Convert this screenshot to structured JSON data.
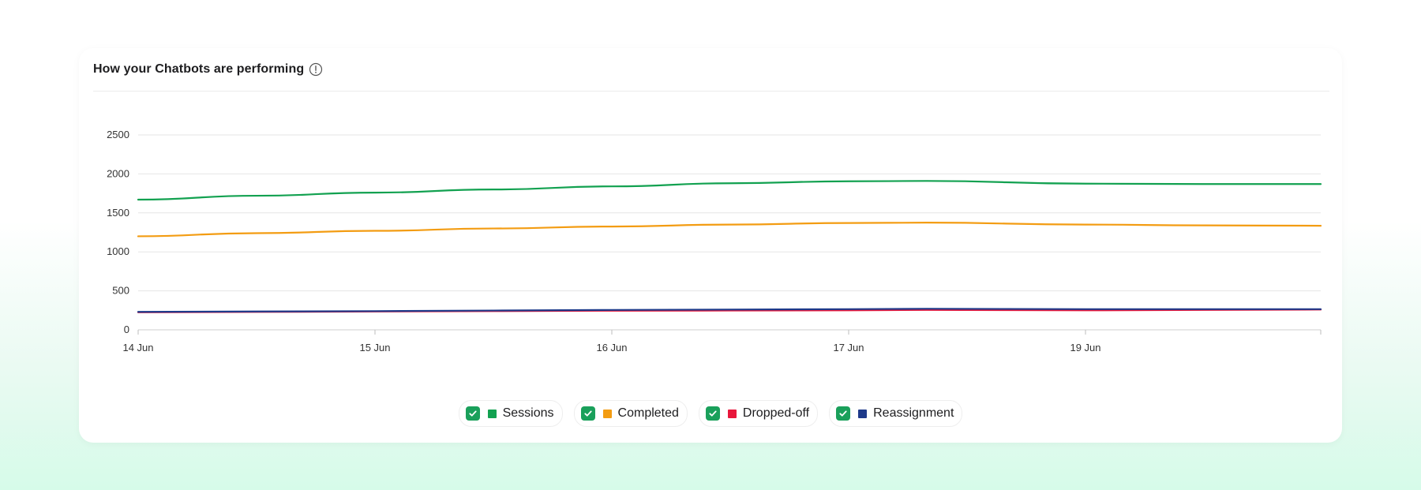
{
  "panel": {
    "title": "How your Chatbots are performing",
    "info_icon": "info-circle-icon"
  },
  "chart_data": {
    "type": "line",
    "title": "How your Chatbots are performing",
    "xlabel": "",
    "ylabel": "",
    "categories": [
      "14 Jun",
      "15 Jun",
      "16 Jun",
      "17 Jun",
      "19 Jun"
    ],
    "x_ticks": [
      "14 Jun",
      "15 Jun",
      "16 Jun",
      "17 Jun",
      "19 Jun"
    ],
    "y_ticks": [
      "0",
      "500",
      "1000",
      "1500",
      "2000",
      "2500"
    ],
    "ylim": [
      0,
      2500
    ],
    "grid": true,
    "legend_position": "bottom-center",
    "series": [
      {
        "name": "Sessions",
        "color": "#12a150",
        "x": [
          0,
          0.5,
          1,
          1.5,
          2,
          2.5,
          3,
          3.33,
          4,
          4.5,
          5
        ],
        "values": [
          1670,
          1720,
          1760,
          1800,
          1840,
          1880,
          1905,
          1910,
          1875,
          1870,
          1870
        ]
      },
      {
        "name": "Completed",
        "color": "#f39c12",
        "x": [
          0,
          0.5,
          1,
          1.5,
          2,
          2.5,
          3,
          3.33,
          4,
          4.5,
          5
        ],
        "values": [
          1200,
          1240,
          1270,
          1300,
          1325,
          1350,
          1370,
          1375,
          1350,
          1340,
          1335
        ]
      },
      {
        "name": "Dropped-off",
        "color": "#e8173b",
        "x": [
          0,
          1,
          2,
          3,
          3.33,
          4,
          5
        ],
        "values": [
          225,
          235,
          245,
          250,
          255,
          250,
          260
        ]
      },
      {
        "name": "Reassignment",
        "color": "#1e3a8a",
        "x": [
          0,
          1,
          2,
          3,
          3.33,
          4,
          5
        ],
        "values": [
          230,
          240,
          255,
          265,
          270,
          265,
          265
        ]
      }
    ]
  }
}
